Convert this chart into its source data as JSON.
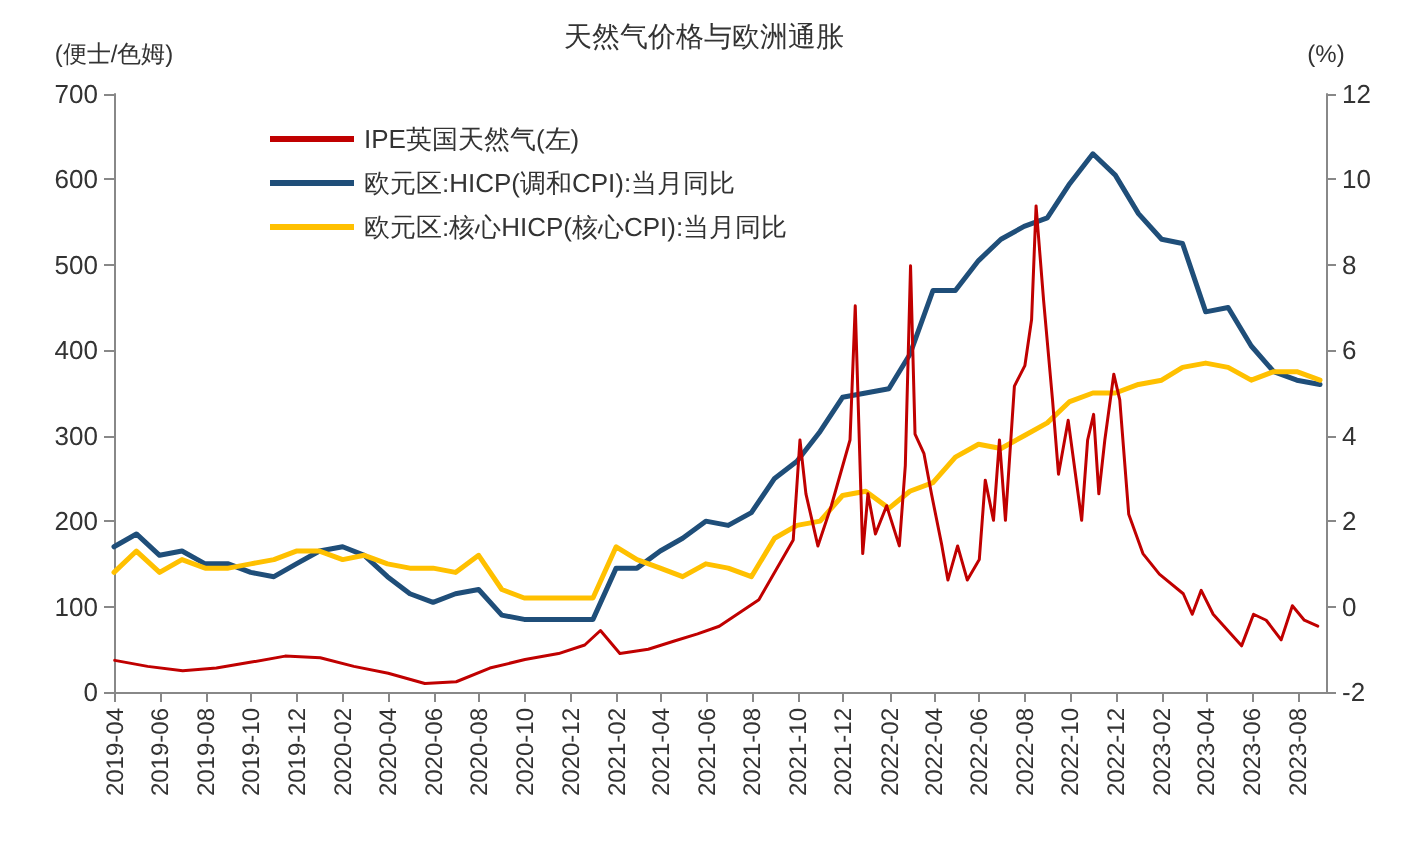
{
  "chart_data": {
    "type": "line",
    "title": "天然气价格与欧洲通胀",
    "ylabel": "(便士/色姆)",
    "y2label": "(%)",
    "xlim": [
      "2019-03-31",
      "2023-09-08"
    ],
    "xticks": [
      "2019-04",
      "2019-06",
      "2019-08",
      "2019-10",
      "2019-12",
      "2020-02",
      "2020-04",
      "2020-06",
      "2020-08",
      "2020-10",
      "2020-12",
      "2021-02",
      "2021-04",
      "2021-06",
      "2021-08",
      "2021-10",
      "2021-12",
      "2022-02",
      "2022-04",
      "2022-06",
      "2022-08",
      "2022-10",
      "2022-12",
      "2023-02",
      "2023-04",
      "2023-06",
      "2023-08"
    ],
    "ylim": [
      0,
      700
    ],
    "yticks": [
      0,
      100,
      200,
      300,
      400,
      500,
      600,
      700
    ],
    "y2lim": [
      -2,
      12
    ],
    "y2ticks": [
      -2,
      0,
      2,
      4,
      6,
      8,
      10,
      12
    ],
    "legend": "top left",
    "grid": false,
    "marker": "none",
    "line_style": "solid",
    "series": [
      {
        "name": "IPE英国天然气(左)",
        "color": "#c00000",
        "x": [
          "2019-04-01",
          "2019-05-15",
          "2019-07-01",
          "2019-08-15",
          "2019-10-01",
          "2019-11-15",
          "2020-01-01",
          "2020-02-15",
          "2020-04-01",
          "2020-05-20",
          "2020-07-01",
          "2020-08-15",
          "2020-10-01",
          "2020-11-15",
          "2020-12-20",
          "2021-01-10",
          "2021-02-05",
          "2021-03-15",
          "2021-04-20",
          "2021-05-20",
          "2021-06-18",
          "2021-08-10",
          "2021-09-25",
          "2021-10-04",
          "2021-10-12",
          "2021-10-28",
          "2021-11-15",
          "2021-12-10",
          "2021-12-17",
          "2021-12-27",
          "2022-01-03",
          "2022-01-13",
          "2022-01-28",
          "2022-02-14",
          "2022-02-22",
          "2022-03-01",
          "2022-03-07",
          "2022-03-19",
          "2022-03-29",
          "2022-04-12",
          "2022-04-20",
          "2022-05-03",
          "2022-05-16",
          "2022-06-01",
          "2022-06-09",
          "2022-06-20",
          "2022-06-28",
          "2022-07-06",
          "2022-07-18",
          "2022-08-01",
          "2022-08-10",
          "2022-08-16",
          "2022-08-26",
          "2022-09-07",
          "2022-09-15",
          "2022-09-28",
          "2022-10-16",
          "2022-10-24",
          "2022-11-01",
          "2022-11-08",
          "2022-11-16",
          "2022-11-28",
          "2022-12-06",
          "2022-12-18",
          "2023-01-06",
          "2023-01-28",
          "2023-03-01",
          "2023-03-13",
          "2023-03-25",
          "2023-04-10",
          "2023-05-18",
          "2023-06-03",
          "2023-06-20",
          "2023-07-10",
          "2023-07-25",
          "2023-08-10",
          "2023-08-28"
        ],
        "values": [
          37,
          30,
          25,
          28,
          35,
          42,
          40,
          30,
          22,
          10,
          12,
          28,
          38,
          45,
          55,
          72,
          45,
          50,
          60,
          68,
          77,
          108,
          178,
          295,
          232,
          171,
          218,
          295,
          452,
          162,
          232,
          185,
          218,
          171,
          265,
          499,
          302,
          279,
          232,
          171,
          131,
          171,
          131,
          155,
          248,
          201,
          295,
          201,
          358,
          382,
          436,
          569,
          459,
          342,
          255,
          318,
          201,
          295,
          325,
          232,
          295,
          372,
          342,
          208,
          162,
          138,
          115,
          91,
          119,
          91,
          54,
          91,
          84,
          61,
          101,
          84,
          77
        ]
      },
      {
        "name": "欧元区:HICP(调和CPI):当月同比",
        "color": "#1f4e79",
        "axis": "y2",
        "x": [
          "2019-03-31",
          "2019-04-30",
          "2019-05-31",
          "2019-06-30",
          "2019-07-31",
          "2019-08-31",
          "2019-09-30",
          "2019-10-31",
          "2019-11-30",
          "2019-12-31",
          "2020-01-31",
          "2020-02-29",
          "2020-03-31",
          "2020-04-30",
          "2020-05-31",
          "2020-06-30",
          "2020-07-31",
          "2020-08-31",
          "2020-09-30",
          "2020-10-31",
          "2020-11-30",
          "2020-12-31",
          "2021-01-31",
          "2021-02-28",
          "2021-03-31",
          "2021-04-30",
          "2021-05-31",
          "2021-06-30",
          "2021-07-31",
          "2021-08-31",
          "2021-09-30",
          "2021-10-31",
          "2021-11-30",
          "2021-12-31",
          "2022-01-31",
          "2022-02-28",
          "2022-03-31",
          "2022-04-30",
          "2022-05-31",
          "2022-06-30",
          "2022-07-31",
          "2022-08-31",
          "2022-09-30",
          "2022-10-31",
          "2022-11-30",
          "2022-12-31",
          "2023-01-31",
          "2023-02-28",
          "2023-03-31",
          "2023-04-30",
          "2023-05-31",
          "2023-06-30",
          "2023-07-31",
          "2023-08-31"
        ],
        "values": [
          1.4,
          1.7,
          1.2,
          1.3,
          1.0,
          1.0,
          0.8,
          0.7,
          1.0,
          1.3,
          1.4,
          1.2,
          0.7,
          0.3,
          0.1,
          0.3,
          0.4,
          -0.2,
          -0.3,
          -0.3,
          -0.3,
          -0.3,
          0.9,
          0.9,
          1.3,
          1.6,
          2.0,
          1.9,
          2.2,
          3.0,
          3.4,
          4.1,
          4.9,
          5.0,
          5.1,
          5.9,
          7.4,
          7.4,
          8.1,
          8.6,
          8.9,
          9.1,
          9.9,
          10.6,
          10.1,
          9.2,
          8.6,
          8.5,
          6.9,
          7.0,
          6.1,
          5.5,
          5.3,
          5.2
        ]
      },
      {
        "name": "欧元区:核心HICP(核心CPI):当月同比",
        "color": "#ffc000",
        "axis": "y2",
        "x": [
          "2019-03-31",
          "2019-04-30",
          "2019-05-31",
          "2019-06-30",
          "2019-07-31",
          "2019-08-31",
          "2019-09-30",
          "2019-10-31",
          "2019-11-30",
          "2019-12-31",
          "2020-01-31",
          "2020-02-29",
          "2020-03-31",
          "2020-04-30",
          "2020-05-31",
          "2020-06-30",
          "2020-07-31",
          "2020-08-31",
          "2020-09-30",
          "2020-10-31",
          "2020-11-30",
          "2020-12-31",
          "2021-01-31",
          "2021-02-28",
          "2021-03-31",
          "2021-04-30",
          "2021-05-31",
          "2021-06-30",
          "2021-07-31",
          "2021-08-31",
          "2021-09-30",
          "2021-10-31",
          "2021-11-30",
          "2021-12-31",
          "2022-01-31",
          "2022-02-28",
          "2022-03-31",
          "2022-04-30",
          "2022-05-31",
          "2022-06-30",
          "2022-07-31",
          "2022-08-31",
          "2022-09-30",
          "2022-10-31",
          "2022-11-30",
          "2022-12-31",
          "2023-01-31",
          "2023-02-28",
          "2023-03-31",
          "2023-04-30",
          "2023-05-31",
          "2023-06-30",
          "2023-07-31",
          "2023-08-31"
        ],
        "values": [
          0.8,
          1.3,
          0.8,
          1.1,
          0.9,
          0.9,
          1.0,
          1.1,
          1.3,
          1.3,
          1.1,
          1.2,
          1.0,
          0.9,
          0.9,
          0.8,
          1.2,
          0.4,
          0.2,
          0.2,
          0.2,
          0.2,
          1.4,
          1.1,
          0.9,
          0.7,
          1.0,
          0.9,
          0.7,
          1.6,
          1.9,
          2.0,
          2.6,
          2.7,
          2.3,
          2.7,
          2.9,
          3.5,
          3.8,
          3.7,
          4.0,
          4.3,
          4.8,
          5.0,
          5.0,
          5.2,
          5.3,
          5.6,
          5.7,
          5.6,
          5.3,
          5.5,
          5.5,
          5.3
        ]
      }
    ]
  }
}
